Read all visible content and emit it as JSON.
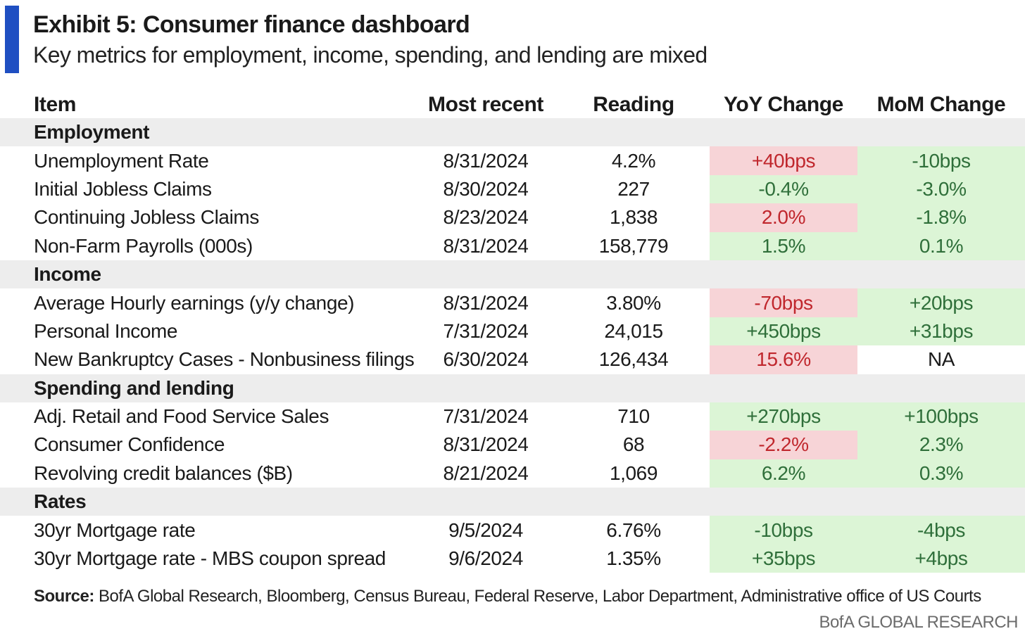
{
  "title": "Exhibit 5: Consumer finance dashboard",
  "subtitle": "Key metrics for employment, income, spending, and lending are mixed",
  "colors": {
    "accent": "#1f4fc2",
    "positive_bg": "#dcf5d6",
    "negative_bg": "#f7d4d7",
    "section_bg": "#ededed"
  },
  "chart_data": {
    "type": "table",
    "columns": [
      "Item",
      "Most recent",
      "Reading",
      "YoY Change",
      "MoM Change"
    ],
    "sections": [
      {
        "name": "Employment",
        "rows": [
          {
            "item": "Unemployment Rate",
            "date": "8/31/2024",
            "reading": "4.2%",
            "yoy": "+40bps",
            "yoy_status": "negative",
            "mom": "-10bps",
            "mom_status": "positive"
          },
          {
            "item": "Initial Jobless Claims",
            "date": "8/30/2024",
            "reading": "227",
            "yoy": "-0.4%",
            "yoy_status": "positive",
            "mom": "-3.0%",
            "mom_status": "positive"
          },
          {
            "item": "Continuing Jobless Claims",
            "date": "8/23/2024",
            "reading": "1,838",
            "yoy": "2.0%",
            "yoy_status": "negative",
            "mom": "-1.8%",
            "mom_status": "positive"
          },
          {
            "item": "Non-Farm Payrolls (000s)",
            "date": "8/31/2024",
            "reading": "158,779",
            "yoy": "1.5%",
            "yoy_status": "positive",
            "mom": "0.1%",
            "mom_status": "positive"
          }
        ]
      },
      {
        "name": "Income",
        "rows": [
          {
            "item": "Average Hourly earnings (y/y change)",
            "date": "8/31/2024",
            "reading": "3.80%",
            "yoy": "-70bps",
            "yoy_status": "negative",
            "mom": "+20bps",
            "mom_status": "positive"
          },
          {
            "item": "Personal Income",
            "date": "7/31/2024",
            "reading": "24,015",
            "yoy": "+450bps",
            "yoy_status": "positive",
            "mom": "+31bps",
            "mom_status": "positive"
          },
          {
            "item": "New Bankruptcy Cases - Nonbusiness filings",
            "date": "6/30/2024",
            "reading": "126,434",
            "yoy": "15.6%",
            "yoy_status": "negative",
            "mom": "NA",
            "mom_status": "neutral"
          }
        ]
      },
      {
        "name": "Spending and lending",
        "rows": [
          {
            "item": "Adj. Retail and Food Service Sales",
            "date": "7/31/2024",
            "reading": "710",
            "yoy": "+270bps",
            "yoy_status": "positive",
            "mom": "+100bps",
            "mom_status": "positive"
          },
          {
            "item": "Consumer Confidence",
            "date": "8/31/2024",
            "reading": "68",
            "yoy": "-2.2%",
            "yoy_status": "negative",
            "mom": "2.3%",
            "mom_status": "positive"
          },
          {
            "item": "Revolving credit balances ($B)",
            "date": "8/21/2024",
            "reading": "1,069",
            "yoy": "6.2%",
            "yoy_status": "positive",
            "mom": "0.3%",
            "mom_status": "positive"
          }
        ]
      },
      {
        "name": "Rates",
        "rows": [
          {
            "item": "30yr Mortgage rate",
            "date": "9/5/2024",
            "reading": "6.76%",
            "yoy": "-10bps",
            "yoy_status": "positive",
            "mom": "-4bps",
            "mom_status": "positive"
          },
          {
            "item": "30yr Mortgage rate - MBS coupon spread",
            "date": "9/6/2024",
            "reading": "1.35%",
            "yoy": "+35bps",
            "yoy_status": "positive",
            "mom": "+4bps",
            "mom_status": "positive"
          }
        ]
      }
    ]
  },
  "source_label": "Source:",
  "source_text": " BofA Global Research, Bloomberg, Census Bureau, Federal Reserve, Labor Department, Administrative office of US Courts",
  "brand": "BofA GLOBAL RESEARCH"
}
